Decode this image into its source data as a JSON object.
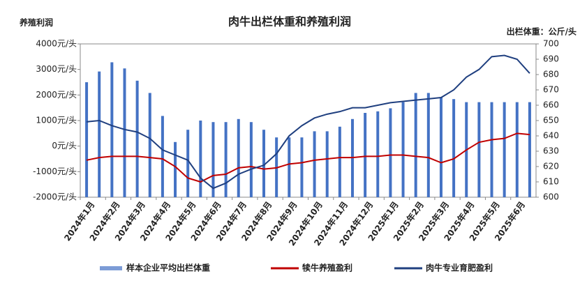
{
  "chart_data": {
    "type": "bar-line",
    "title": "肉牛出栏体重和养殖利润",
    "y_label": "养殖利润",
    "y2_label": "出栏体重：公斤/头",
    "categories": [
      "2024年1月",
      null,
      "2024年2月",
      null,
      "2024年3月",
      null,
      "2024年4月",
      null,
      "2024年5月",
      null,
      "2024年6月",
      null,
      "2024年7月",
      null,
      "2024年8月",
      null,
      "2024年9月",
      null,
      "2024年10月",
      null,
      "2024年11月",
      null,
      "2024年12月",
      null,
      "2025年1月",
      null,
      "2025年2月",
      null,
      "2025年3月",
      null,
      "2025年4月",
      null,
      "2025年5月",
      null,
      "2025年6月",
      null
    ],
    "series": [
      {
        "name": "样本企业平均出栏体重",
        "type": "bar",
        "axis": "y2",
        "color": "#4472c4",
        "values": [
          675,
          682,
          688,
          684,
          676,
          668,
          653,
          636,
          644,
          650,
          649,
          649,
          651,
          649,
          644,
          639,
          639,
          639,
          643,
          643,
          646,
          651,
          655,
          656,
          658,
          662,
          668,
          668,
          665,
          664,
          662,
          662,
          662,
          662,
          662,
          662
        ]
      },
      {
        "name": "犊牛养殖盈利",
        "type": "line",
        "color": "#c00000",
        "values": [
          -550,
          -450,
          -400,
          -400,
          -400,
          -450,
          -500,
          -800,
          -1250,
          -1400,
          -1150,
          -1100,
          -850,
          -800,
          -900,
          -850,
          -700,
          -650,
          -550,
          -500,
          -450,
          -450,
          -400,
          -400,
          -350,
          -350,
          -400,
          -450,
          -650,
          -500,
          -150,
          150,
          250,
          300,
          500,
          450
        ]
      },
      {
        "name": "肉牛专业育肥盈利",
        "type": "line",
        "color": "#1f3f7f",
        "values": [
          950,
          1000,
          800,
          650,
          550,
          300,
          -150,
          -350,
          -550,
          -1250,
          -1650,
          -1450,
          -1100,
          -900,
          -750,
          -300,
          400,
          800,
          1100,
          1250,
          1350,
          1500,
          1500,
          1600,
          1700,
          1750,
          1800,
          1850,
          1900,
          2200,
          2700,
          3000,
          3500,
          3550,
          3400,
          2850
        ]
      }
    ],
    "ylim": [
      -2000,
      4000
    ],
    "yticks": [
      {
        "value": -2000,
        "label": "-2000元/头"
      },
      {
        "value": -1000,
        "label": "-1000元/头"
      },
      {
        "value": 0,
        "label": "0元/头"
      },
      {
        "value": 1000,
        "label": "1000元/头"
      },
      {
        "value": 2000,
        "label": "2000元/头"
      },
      {
        "value": 3000,
        "label": "3000元/头"
      },
      {
        "value": 4000,
        "label": "4000元/头"
      }
    ],
    "y2lim": [
      600,
      700
    ],
    "y2ticks": [
      600,
      610,
      620,
      630,
      640,
      650,
      660,
      670,
      680,
      690,
      700
    ]
  }
}
